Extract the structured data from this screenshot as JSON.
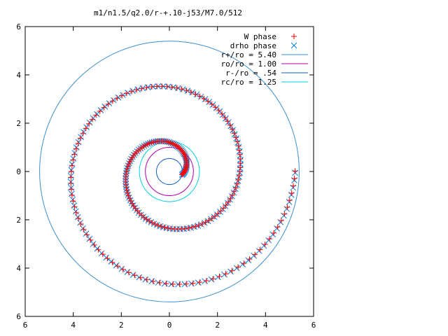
{
  "chart_data": {
    "type": "scatter",
    "title": "m1/n1.5/q2.0/r-+.10-j53/M7.0/512",
    "xlim": [
      -6,
      6
    ],
    "ylim": [
      -6,
      6
    ],
    "xticks": [
      -6,
      -4,
      -2,
      0,
      2,
      4,
      6
    ],
    "yticks": [
      -6,
      -4,
      -2,
      0,
      2,
      4,
      6
    ],
    "xtick_labels": [
      "6",
      "4",
      "2",
      "0",
      "2",
      "4",
      "6"
    ],
    "ytick_labels": [
      "6",
      "4",
      "2",
      "0",
      "2",
      "4",
      "6"
    ],
    "grid": false,
    "legend_position": "top-right",
    "spiral_model": {
      "inner_radius": 0.54,
      "inner_angle_deg": -15,
      "growth_per_turn": 2.3,
      "angle_step_deg": 3.4,
      "max_radius": 5.25,
      "w_offset_deg": 0.8
    },
    "series": [
      {
        "name": "W phase",
        "marker": "plus",
        "color": "#ff0000"
      },
      {
        "name": "drho phase",
        "marker": "cross",
        "color": "#0080e0"
      }
    ],
    "circles": [
      {
        "name": "r+/ro = 5.40",
        "radius": 5.4,
        "color": "#3a8fd0"
      },
      {
        "name": "ro/ro = 1.00",
        "radius": 1.0,
        "color": "#b000b0"
      },
      {
        "name": "r-/ro = .54",
        "radius": 0.54,
        "color": "#1060c0"
      },
      {
        "name": "rc/ro = 1.25",
        "radius": 1.25,
        "color": "#00d0e0"
      }
    ]
  }
}
